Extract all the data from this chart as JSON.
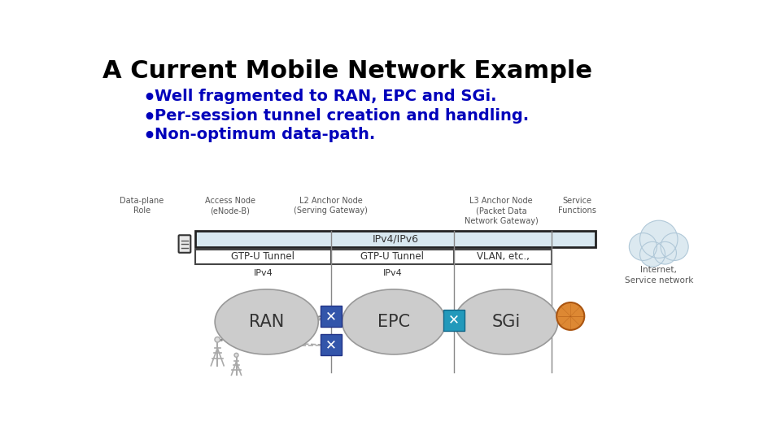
{
  "title": "A Current Mobile Network Example",
  "title_color": "#000000",
  "title_fontsize": 22,
  "bullet_color": "#0000BB",
  "bullet_fontsize": 14,
  "bullets": [
    "Well fragmented to RAN, EPC and SGi.",
    "Per-session tunnel creation and handling.",
    "Non-optimum data-path."
  ],
  "bg_color": "#FFFFFF",
  "diagram": {
    "bar_color": "#D8E8F0",
    "bar_border": "#222222",
    "label_color": "#555555",
    "node_color": "#CCCCCC",
    "node_border": "#999999",
    "box_color": "#FFFFFF",
    "box_border": "#444444",
    "text_color": "#333333",
    "blue_box_color": "#3355AA",
    "cyan_box_color": "#2299BB",
    "orange_circle_color": "#DD8833",
    "cloud_color": "#DCE9F0",
    "cloud_border": "#B0C8D8",
    "roles": {
      "dataplane": "Data-plane\nRole",
      "access": "Access Node\n(eNode-B)",
      "l2anchor": "L2 Anchor Node\n(Serving Gateway)",
      "l3anchor": "L3 Anchor Node\n(Packet Data\nNetwork Gateway)",
      "service": "Service\nFunctions"
    },
    "bar_labels": [
      "IPv4/IPv6",
      "GTP-U Tunnel",
      "GTP-U Tunnel",
      "VLAN, etc.,"
    ],
    "node_labels": [
      "RAN",
      "EPC",
      "SGi"
    ],
    "ipv4_labels": [
      "IPv4",
      "IPv4"
    ],
    "internet_label": "Internet,\nService network"
  }
}
